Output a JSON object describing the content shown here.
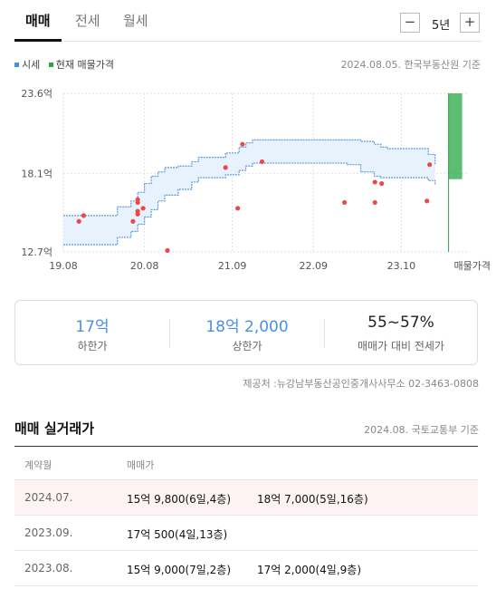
{
  "tabs": [
    "매매",
    "전세",
    "월세"
  ],
  "period": {
    "minus": "−",
    "value": "5년",
    "plus": "+"
  },
  "legend": [
    {
      "label": "시세",
      "color": "#4a90e2"
    },
    {
      "label": "현재 매물가격",
      "color": "#27a844"
    }
  ],
  "source_top": "2024.08.05. 한국부동산원 기준",
  "chart_data": {
    "type": "area",
    "y_ticks": [
      "23.6억",
      "18.1억",
      "12.7억"
    ],
    "y_tick_values": [
      23.6,
      18.1,
      12.7
    ],
    "x_ticks": [
      "19.08",
      "20.08",
      "21.09",
      "22.09",
      "23.10",
      "매물가격"
    ],
    "x_tick_values": [
      0,
      12,
      25,
      37,
      50,
      60
    ],
    "ylim": [
      12.7,
      23.6
    ],
    "xlim": [
      0,
      60
    ],
    "grid": true,
    "band": {
      "x": [
        0,
        6,
        8,
        10,
        11,
        12,
        13,
        14,
        15,
        17,
        19,
        20,
        21,
        24,
        26,
        27,
        28,
        29,
        35,
        42,
        44,
        46,
        47,
        48,
        54,
        55
      ],
      "upper": [
        15.2,
        15.2,
        15.8,
        16.2,
        16.8,
        17.4,
        17.9,
        18.2,
        18.5,
        18.6,
        18.9,
        19.2,
        19.2,
        19.5,
        19.9,
        20.2,
        20.4,
        20.4,
        20.4,
        20.4,
        20.3,
        20.1,
        19.9,
        19.8,
        19.4,
        18.7
      ],
      "lower": [
        13.2,
        13.2,
        13.7,
        14.1,
        14.6,
        15.1,
        15.6,
        16.2,
        16.6,
        17.0,
        17.5,
        17.8,
        17.8,
        18.0,
        18.3,
        18.6,
        18.8,
        18.8,
        18.8,
        18.7,
        18.2,
        17.9,
        17.8,
        17.8,
        17.6,
        17.3
      ]
    },
    "points": [
      {
        "x": 2.3,
        "y": 14.8
      },
      {
        "x": 3.0,
        "y": 15.2
      },
      {
        "x": 10.3,
        "y": 14.8
      },
      {
        "x": 11.0,
        "y": 15.3
      },
      {
        "x": 11.0,
        "y": 15.5
      },
      {
        "x": 11.0,
        "y": 16.1
      },
      {
        "x": 11.0,
        "y": 16.3
      },
      {
        "x": 11.8,
        "y": 15.7
      },
      {
        "x": 15.4,
        "y": 12.8
      },
      {
        "x": 24.0,
        "y": 18.5
      },
      {
        "x": 25.8,
        "y": 15.7
      },
      {
        "x": 26.5,
        "y": 20.1
      },
      {
        "x": 29.4,
        "y": 18.9
      },
      {
        "x": 41.6,
        "y": 16.1
      },
      {
        "x": 46.1,
        "y": 16.1
      },
      {
        "x": 46.1,
        "y": 17.5
      },
      {
        "x": 47.1,
        "y": 17.4
      },
      {
        "x": 53.8,
        "y": 16.2
      },
      {
        "x": 54.2,
        "y": 18.7
      }
    ],
    "current_listing": {
      "x": 57,
      "low": 17.7,
      "high": 23.6
    },
    "band_fill": "#e8f2fc",
    "band_line": "#5b9be0",
    "point_color": "#e84a4a",
    "listing_color": "#27a844"
  },
  "summary": [
    {
      "value": "17억",
      "label": "하한가",
      "color": "#4a90e2"
    },
    {
      "value": "18억 2,000",
      "label": "상한가",
      "color": "#4a90e2"
    },
    {
      "value": "55~57%",
      "label": "매매가 대비 전세가",
      "color": "#222222"
    }
  ],
  "provider": "제공처 :뉴강남부동산공인중개사사무소 02-3463-0808",
  "deals": {
    "title": "매매 실거래가",
    "source": "2024.08. 국토교통부 기준",
    "headers": [
      "계약월",
      "매매가"
    ],
    "rows": [
      {
        "month": "2024.07.",
        "prices": [
          "15억 9,800(6일,4층)",
          "18억 7,000(5일,16층)"
        ],
        "highlight": true
      },
      {
        "month": "2023.09.",
        "prices": [
          "17억 500(4일,13층)"
        ],
        "highlight": false
      },
      {
        "month": "2023.08.",
        "prices": [
          "15억 9,000(7일,2층)",
          "17억 2,000(4일,9층)"
        ],
        "highlight": false
      }
    ]
  }
}
